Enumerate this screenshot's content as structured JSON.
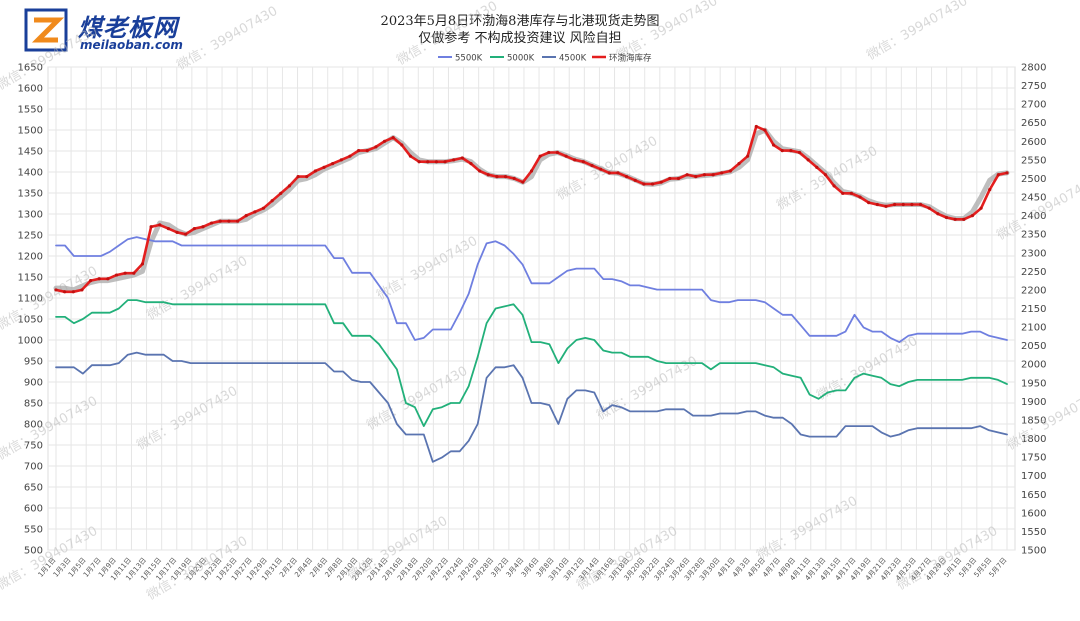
{
  "logo": {
    "text": "煤老板网",
    "sub": "meilaoban.com"
  },
  "title_line1": "2023年5月8日环渤海8港库存与北港现货走势图",
  "title_line2": "仅做参考 不构成投资建议 风险自担",
  "watermark": "微信：399407430",
  "chart_data": {
    "type": "line",
    "left_axis": {
      "min": 500,
      "max": 1650,
      "step": 50,
      "ticks": [
        "500",
        "550",
        "600",
        "650",
        "700",
        "750",
        "800",
        "850",
        "900",
        "950",
        "1000",
        "1050",
        "1100",
        "1150",
        "1200",
        "1250",
        "1300",
        "1350",
        "1400",
        "1450",
        "1500",
        "1550",
        "1600",
        "1650"
      ]
    },
    "right_axis": {
      "min": 1500,
      "max": 2800,
      "step": 50,
      "ticks": [
        "1500",
        "1550",
        "1600",
        "1650",
        "1700",
        "1750",
        "1800",
        "1850",
        "1900",
        "1950",
        "2000",
        "2050",
        "2100",
        "2150",
        "2200",
        "2250",
        "2300",
        "2350",
        "2400",
        "2450",
        "2500",
        "2550",
        "2600",
        "2650",
        "2700",
        "2750",
        "2800"
      ]
    },
    "x_labels": [
      "1月1日",
      "1月3日",
      "1月5日",
      "1月7日",
      "1月9日",
      "1月11日",
      "1月13日",
      "1月15日",
      "1月17日",
      "1月19日",
      "1月21日",
      "1月23日",
      "1月25日",
      "1月27日",
      "1月29日",
      "1月31日",
      "2月2日",
      "2月4日",
      "2月6日",
      "2月8日",
      "2月10日",
      "2月12日",
      "2月14日",
      "2月16日",
      "2月18日",
      "2月20日",
      "2月22日",
      "2月24日",
      "2月26日",
      "2月28日",
      "3月2日",
      "3月4日",
      "3月6日",
      "3月8日",
      "3月10日",
      "3月12日",
      "3月14日",
      "3月16日",
      "3月18日",
      "3月20日",
      "3月22日",
      "3月24日",
      "3月26日",
      "3月28日",
      "3月30日",
      "4月1日",
      "4月3日",
      "4月5日",
      "4月7日",
      "4月9日",
      "4月11日",
      "4月13日",
      "4月15日",
      "4月17日",
      "4月19日",
      "4月21日",
      "4月23日",
      "4月25日",
      "4月27日",
      "4月29日",
      "5月1日",
      "5月3日",
      "5月5日",
      "5月7日"
    ],
    "legend": [
      "5500K",
      "5000K",
      "4500K",
      "环渤海库存"
    ],
    "legend_position": "top",
    "grid": true,
    "series": [
      {
        "name": "5500K",
        "axis": "left",
        "color": "#6f7fe0",
        "values": [
          1225,
          1225,
          1200,
          1200,
          1200,
          1200,
          1210,
          1225,
          1240,
          1245,
          1240,
          1235,
          1235,
          1235,
          1225,
          1225,
          1225,
          1225,
          1225,
          1225,
          1225,
          1225,
          1225,
          1225,
          1225,
          1225,
          1225,
          1225,
          1225,
          1225,
          1225,
          1195,
          1195,
          1160,
          1160,
          1160,
          1130,
          1100,
          1040,
          1040,
          1000,
          1005,
          1025,
          1025,
          1025,
          1065,
          1110,
          1180,
          1230,
          1235,
          1225,
          1205,
          1180,
          1135,
          1135,
          1135,
          1150,
          1165,
          1170,
          1170,
          1170,
          1145,
          1145,
          1140,
          1130,
          1130,
          1125,
          1120,
          1120,
          1120,
          1120,
          1120,
          1120,
          1095,
          1090,
          1090,
          1095,
          1095,
          1095,
          1090,
          1075,
          1060,
          1060,
          1035,
          1010,
          1010,
          1010,
          1010,
          1020,
          1060,
          1030,
          1020,
          1020,
          1005,
          995,
          1010,
          1015,
          1015,
          1015,
          1015,
          1015,
          1015,
          1020,
          1020,
          1010,
          1005,
          1000
        ]
      },
      {
        "name": "5000K",
        "axis": "left",
        "color": "#22b07a",
        "values": [
          1055,
          1055,
          1040,
          1050,
          1065,
          1065,
          1065,
          1075,
          1095,
          1095,
          1090,
          1090,
          1090,
          1085,
          1085,
          1085,
          1085,
          1085,
          1085,
          1085,
          1085,
          1085,
          1085,
          1085,
          1085,
          1085,
          1085,
          1085,
          1085,
          1085,
          1085,
          1040,
          1040,
          1010,
          1010,
          1010,
          990,
          960,
          930,
          850,
          840,
          795,
          835,
          840,
          850,
          850,
          890,
          960,
          1040,
          1075,
          1080,
          1085,
          1060,
          995,
          995,
          990,
          945,
          980,
          1000,
          1005,
          1000,
          975,
          970,
          970,
          960,
          960,
          960,
          950,
          945,
          945,
          945,
          945,
          945,
          930,
          945,
          945,
          945,
          945,
          945,
          940,
          935,
          920,
          915,
          910,
          870,
          860,
          875,
          880,
          880,
          910,
          920,
          915,
          910,
          895,
          890,
          900,
          905,
          905,
          905,
          905,
          905,
          905,
          910,
          910,
          910,
          905,
          895
        ]
      },
      {
        "name": "4500K",
        "axis": "left",
        "color": "#5a74b0",
        "values": [
          935,
          935,
          935,
          920,
          940,
          940,
          940,
          945,
          965,
          970,
          965,
          965,
          965,
          950,
          950,
          945,
          945,
          945,
          945,
          945,
          945,
          945,
          945,
          945,
          945,
          945,
          945,
          945,
          945,
          945,
          945,
          925,
          925,
          905,
          900,
          900,
          875,
          850,
          800,
          775,
          775,
          775,
          710,
          720,
          735,
          735,
          760,
          800,
          910,
          935,
          935,
          940,
          910,
          850,
          850,
          845,
          800,
          860,
          880,
          880,
          875,
          830,
          845,
          840,
          830,
          830,
          830,
          830,
          835,
          835,
          835,
          820,
          820,
          820,
          825,
          825,
          825,
          830,
          830,
          820,
          815,
          815,
          800,
          775,
          770,
          770,
          770,
          770,
          795,
          795,
          795,
          795,
          780,
          770,
          775,
          785,
          790,
          790,
          790,
          790,
          790,
          790,
          790,
          795,
          785,
          780,
          775
        ]
      },
      {
        "name": "环渤海库存",
        "axis": "right",
        "color": "#e41e1e",
        "values": [
          2200,
          2195,
          2195,
          2200,
          2225,
          2230,
          2230,
          2240,
          2245,
          2245,
          2270,
          2370,
          2375,
          2365,
          2355,
          2350,
          2365,
          2370,
          2380,
          2385,
          2385,
          2385,
          2400,
          2410,
          2420,
          2440,
          2460,
          2480,
          2505,
          2505,
          2520,
          2530,
          2540,
          2550,
          2560,
          2575,
          2575,
          2585,
          2600,
          2610,
          2590,
          2560,
          2545,
          2545,
          2545,
          2545,
          2550,
          2555,
          2540,
          2520,
          2510,
          2505,
          2505,
          2500,
          2490,
          2520,
          2560,
          2570,
          2570,
          2560,
          2550,
          2545,
          2535,
          2525,
          2515,
          2515,
          2505,
          2495,
          2485,
          2485,
          2490,
          2500,
          2500,
          2510,
          2505,
          2510,
          2510,
          2515,
          2520,
          2540,
          2560,
          2640,
          2630,
          2590,
          2575,
          2575,
          2570,
          2550,
          2530,
          2510,
          2480,
          2460,
          2460,
          2450,
          2435,
          2430,
          2425,
          2430,
          2430,
          2430,
          2430,
          2420,
          2405,
          2395,
          2390,
          2390,
          2400,
          2420,
          2470,
          2510,
          2515
        ]
      },
      {
        "name": "",
        "axis": "right",
        "color": "#a8a8a8",
        "values": [
          2205,
          2205,
          2200,
          2210,
          2220,
          2225,
          2225,
          2230,
          2235,
          2240,
          2250,
          2330,
          2380,
          2375,
          2360,
          2350,
          2355,
          2365,
          2375,
          2385,
          2385,
          2385,
          2390,
          2405,
          2415,
          2430,
          2450,
          2470,
          2495,
          2500,
          2510,
          2525,
          2535,
          2545,
          2555,
          2570,
          2575,
          2580,
          2595,
          2610,
          2595,
          2570,
          2550,
          2545,
          2545,
          2545,
          2548,
          2552,
          2545,
          2525,
          2510,
          2505,
          2505,
          2500,
          2490,
          2505,
          2550,
          2565,
          2570,
          2562,
          2552,
          2546,
          2536,
          2526,
          2516,
          2514,
          2506,
          2496,
          2486,
          2484,
          2488,
          2498,
          2500,
          2506,
          2506,
          2508,
          2510,
          2514,
          2518,
          2530,
          2550,
          2620,
          2630,
          2600,
          2580,
          2576,
          2572,
          2555,
          2535,
          2515,
          2488,
          2465,
          2460,
          2452,
          2440,
          2432,
          2428,
          2430,
          2430,
          2430,
          2430,
          2424,
          2410,
          2398,
          2392,
          2392,
          2410,
          2450,
          2495,
          2512,
          2515
        ]
      }
    ]
  }
}
